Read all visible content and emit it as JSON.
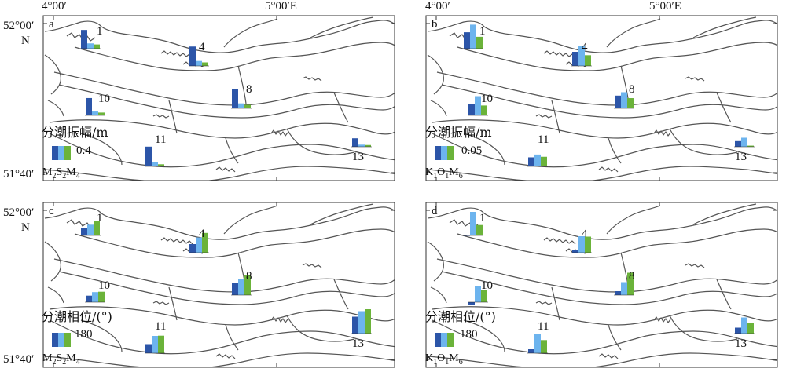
{
  "axes": {
    "lon_labels": [
      "4°00′",
      "5°00′E"
    ],
    "lat_labels": [
      "52°00′",
      "N",
      "51°40′"
    ]
  },
  "colors": {
    "bar1": "#2c55a8",
    "bar2": "#6db4ee",
    "bar3": "#6bb33a",
    "coast": "#555555",
    "frame": "#333333"
  },
  "panels": [
    {
      "letter": "a",
      "legend_title": "分潮振幅/m",
      "legend_value": "0.4",
      "legend_scale": 0.4,
      "formula": [
        {
          "t": "M"
        },
        {
          "s": "2"
        },
        {
          "t": "S"
        },
        {
          "s": "2"
        },
        {
          "t": "M"
        },
        {
          "s": "4"
        }
      ],
      "stations": [
        {
          "id": "1",
          "values": [
            0.53,
            0.15,
            0.12
          ]
        },
        {
          "id": "4",
          "values": [
            0.55,
            0.14,
            0.1
          ]
        },
        {
          "id": "8",
          "values": [
            0.55,
            0.14,
            0.1
          ]
        },
        {
          "id": "10",
          "values": [
            0.49,
            0.11,
            0.08
          ]
        },
        {
          "id": "11",
          "values": [
            0.56,
            0.13,
            0.06
          ]
        },
        {
          "id": "13",
          "values": [
            0.24,
            0.06,
            0.05
          ]
        }
      ]
    },
    {
      "letter": "b",
      "legend_title": "分潮振幅/m",
      "legend_value": "0.05",
      "legend_scale": 0.05,
      "formula": [
        {
          "t": "K"
        },
        {
          "s": "1"
        },
        {
          "t": "O"
        },
        {
          "s": "1"
        },
        {
          "t": "M"
        },
        {
          "s": "6"
        }
      ],
      "stations": [
        {
          "id": "1",
          "values": [
            0.058,
            0.085,
            0.042
          ]
        },
        {
          "id": "4",
          "values": [
            0.05,
            0.071,
            0.038
          ]
        },
        {
          "id": "8",
          "values": [
            0.045,
            0.057,
            0.036
          ]
        },
        {
          "id": "10",
          "values": [
            0.04,
            0.068,
            0.035
          ]
        },
        {
          "id": "11",
          "values": [
            0.032,
            0.042,
            0.034
          ]
        },
        {
          "id": "13",
          "values": [
            0.02,
            0.032,
            0.004
          ]
        }
      ]
    },
    {
      "letter": "c",
      "legend_title": "分潮相位/(°)",
      "legend_value": "180",
      "legend_scale": 180,
      "formula": [
        {
          "t": "M"
        },
        {
          "s": "2"
        },
        {
          "t": "S"
        },
        {
          "s": "2"
        },
        {
          "t": "M"
        },
        {
          "s": "4"
        }
      ],
      "stations": [
        {
          "id": "1",
          "values": [
            92,
            137,
            180
          ]
        },
        {
          "id": "4",
          "values": [
            110,
            194,
            252
          ]
        },
        {
          "id": "8",
          "values": [
            155,
            200,
            252
          ]
        },
        {
          "id": "10",
          "values": [
            83,
            128,
            133
          ]
        },
        {
          "id": "11",
          "values": [
            115,
            220,
            223
          ]
        },
        {
          "id": "13",
          "values": [
            215,
            285,
            310
          ]
        }
      ]
    },
    {
      "letter": "d",
      "legend_title": "分潮相位/(°)",
      "legend_value": "180",
      "legend_scale": 180,
      "formula": [
        {
          "t": "K"
        },
        {
          "s": "1"
        },
        {
          "t": "O"
        },
        {
          "s": "1"
        },
        {
          "t": "M"
        },
        {
          "s": "6"
        }
      ],
      "stations": [
        {
          "id": "1",
          "values": [
            0,
            300,
            133
          ]
        },
        {
          "id": "4",
          "values": [
            30,
            210,
            205
          ]
        },
        {
          "id": "8",
          "values": [
            50,
            165,
            285
          ]
        },
        {
          "id": "10",
          "values": [
            -35,
            210,
            160
          ]
        },
        {
          "id": "11",
          "values": [
            50,
            250,
            167
          ]
        },
        {
          "id": "13",
          "values": [
            75,
            205,
            140
          ]
        }
      ]
    }
  ]
}
